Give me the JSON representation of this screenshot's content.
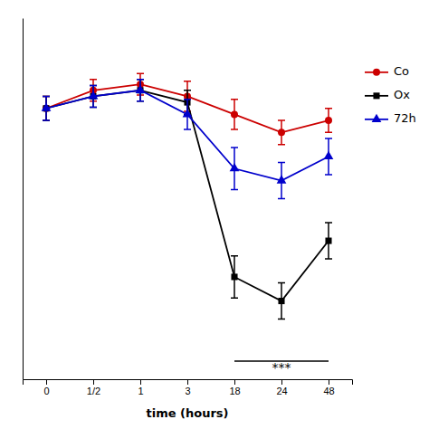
{
  "chart_data": {
    "type": "line",
    "xlabel": "time (hours)",
    "categories": [
      "0",
      "1/2",
      "1",
      "3",
      "18",
      "24",
      "48"
    ],
    "series": [
      {
        "name": "Co",
        "color": "#cc0000",
        "marker": "circle",
        "values": [
          100,
          103,
          104,
          102,
          99,
          96,
          98
        ],
        "errors": [
          2.0,
          1.8,
          1.8,
          2.5,
          2.5,
          2.0,
          2.0
        ]
      },
      {
        "name": "Ox",
        "color": "#000000",
        "marker": "square",
        "values": [
          100,
          102,
          103,
          101,
          72,
          68,
          78
        ],
        "errors": [
          2.0,
          1.8,
          1.8,
          2.0,
          3.5,
          3.0,
          3.0
        ]
      },
      {
        "name": "72h",
        "color": "#0000cc",
        "marker": "triangle",
        "values": [
          100,
          102,
          103,
          99,
          90,
          88,
          92
        ],
        "errors": [
          2.0,
          1.8,
          1.8,
          2.5,
          3.5,
          3.0,
          3.0
        ]
      }
    ],
    "ylim": [
      55,
      115
    ],
    "tick_labels": "x",
    "grid": false,
    "legend": "right",
    "annotations": [
      {
        "text": "***",
        "x": [
          "18",
          "48"
        ],
        "y": 58
      }
    ]
  }
}
